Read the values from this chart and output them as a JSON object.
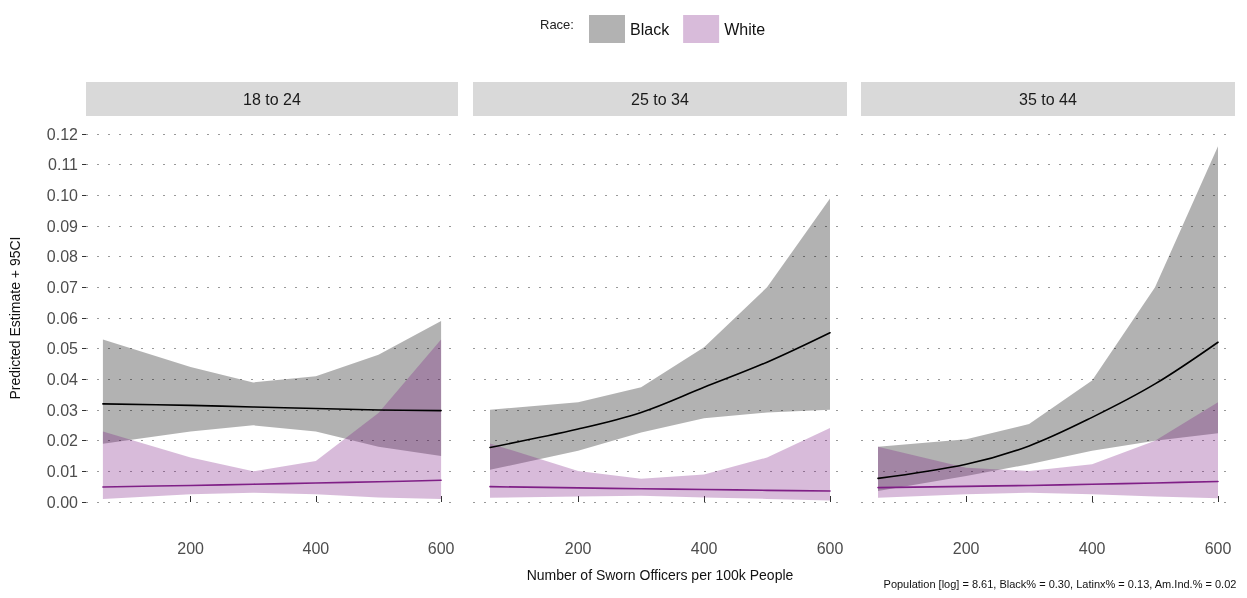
{
  "chart_data": [
    {
      "type": "line",
      "title": "18 to 24",
      "ylabel": "Predicted Estimate + 95CI",
      "xlim": [
        33,
        627
      ],
      "xticks": [
        200,
        400,
        600
      ],
      "ylim": [
        0,
        0.12
      ],
      "yticks": [
        {
          "value": 0,
          "label": "0.00"
        },
        {
          "value": 0.01,
          "label": "0.01"
        },
        {
          "value": 0.02,
          "label": "0.02"
        },
        {
          "value": 0.03,
          "label": "0.03"
        },
        {
          "value": 0.04,
          "label": "0.04"
        },
        {
          "value": 0.05,
          "label": "0.05"
        },
        {
          "value": 0.06,
          "label": "0.06"
        },
        {
          "value": 0.07,
          "label": "0.07"
        },
        {
          "value": 0.08,
          "label": "0.08"
        },
        {
          "value": 0.09,
          "label": "0.09"
        },
        {
          "value": 0.1,
          "label": "0.10"
        },
        {
          "value": 0.11,
          "label": "0.11"
        },
        {
          "value": 0.12,
          "label": "0.12"
        }
      ],
      "grid": "y",
      "series": [
        {
          "color": "#000000",
          "x": [
            60,
            200,
            300,
            400,
            500,
            600
          ],
          "values": [
            0.032,
            0.0315,
            0.031,
            0.0305,
            0.03,
            0.0298
          ],
          "lower": [
            0.019,
            0.023,
            0.025,
            0.023,
            0.018,
            0.015
          ],
          "upper": [
            0.053,
            0.044,
            0.039,
            0.041,
            0.048,
            0.059
          ]
        },
        {
          "color": "#7f1f86",
          "x": [
            60,
            200,
            300,
            400,
            500,
            600
          ],
          "values": [
            0.0049,
            0.0054,
            0.0058,
            0.0062,
            0.0066,
            0.0071
          ],
          "lower": [
            0.001,
            0.0025,
            0.003,
            0.0025,
            0.0015,
            0.001
          ],
          "upper": [
            0.023,
            0.0145,
            0.01,
            0.0134,
            0.029,
            0.053
          ]
        }
      ]
    },
    {
      "type": "line",
      "title": "25 to 34",
      "xlabel": "Number of Sworn Officers per 100k People",
      "legend": "top",
      "legend_title": "Race:",
      "tick_labels": "x",
      "xlim": [
        33,
        627
      ],
      "xticks": [
        200,
        400,
        600
      ],
      "ylim": [
        0,
        0.12
      ],
      "yticks": [
        0,
        0.01,
        0.02,
        0.03,
        0.04,
        0.05,
        0.06,
        0.07,
        0.08,
        0.09,
        0.1,
        0.11,
        0.12
      ],
      "grid": "y",
      "series": [
        {
          "name": "Black",
          "color": "#000000",
          "x": [
            60,
            200,
            300,
            400,
            500,
            600
          ],
          "values": [
            0.0178,
            0.0238,
            0.0292,
            0.0374,
            0.0456,
            0.0552
          ],
          "lower": [
            0.0105,
            0.0167,
            0.0227,
            0.0273,
            0.0292,
            0.0301
          ],
          "upper": [
            0.0301,
            0.0325,
            0.0374,
            0.0505,
            0.07,
            0.099
          ]
        },
        {
          "name": "White",
          "color": "#7f1f86",
          "x": [
            60,
            200,
            300,
            400,
            500,
            600
          ],
          "values": [
            0.005,
            0.0046,
            0.0043,
            0.0041,
            0.0038,
            0.0036
          ],
          "lower": [
            0.0014,
            0.0018,
            0.002,
            0.0015,
            0.001,
            0.0005
          ],
          "upper": [
            0.0191,
            0.0101,
            0.0076,
            0.009,
            0.0145,
            0.0241
          ]
        }
      ]
    },
    {
      "type": "line",
      "title": "35 to 44",
      "annotations": [
        "Population [log] = 8.61, Black% = 0.30, Latinx% = 0.13, Am.Ind.% = 0.02"
      ],
      "tick_labels": "x",
      "xlim": [
        33,
        627
      ],
      "xticks": [
        200,
        400,
        600
      ],
      "ylim": [
        0,
        0.12
      ],
      "yticks": [
        0,
        0.01,
        0.02,
        0.03,
        0.04,
        0.05,
        0.06,
        0.07,
        0.08,
        0.09,
        0.1,
        0.11,
        0.12
      ],
      "grid": "y",
      "series": [
        {
          "color": "#000000",
          "x": [
            60,
            200,
            300,
            400,
            500,
            600
          ],
          "values": [
            0.0077,
            0.0123,
            0.0183,
            0.0276,
            0.0385,
            0.0521
          ],
          "lower": [
            0.0036,
            0.0085,
            0.0123,
            0.0167,
            0.02,
            0.0224
          ],
          "upper": [
            0.018,
            0.0205,
            0.0254,
            0.0396,
            0.07,
            0.116
          ]
        },
        {
          "color": "#7f1f86",
          "x": [
            60,
            200,
            300,
            400,
            500,
            600
          ],
          "values": [
            0.0047,
            0.0051,
            0.0054,
            0.0058,
            0.0062,
            0.0067
          ],
          "lower": [
            0.0014,
            0.0025,
            0.003,
            0.0025,
            0.0018,
            0.0012
          ],
          "upper": [
            0.018,
            0.0112,
            0.0101,
            0.0123,
            0.02,
            0.0325
          ]
        }
      ]
    }
  ]
}
